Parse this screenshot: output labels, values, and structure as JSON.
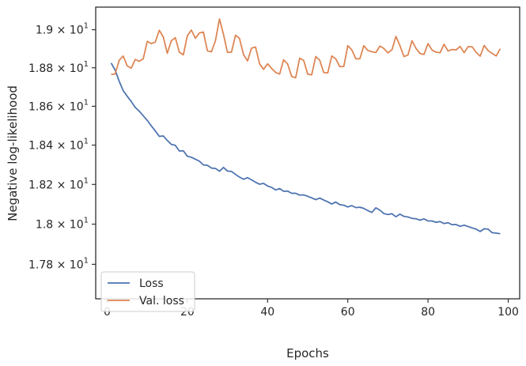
{
  "chart_data": {
    "type": "line",
    "xlabel": "Epochs",
    "ylabel": "Negative log-likelihood",
    "xlim": [
      -2.85,
      102.85
    ],
    "ylim": [
      17.63,
      19.12
    ],
    "y_scale": "log",
    "grid": false,
    "legend_position": "lower-left",
    "x_ticks": [
      0,
      20,
      40,
      60,
      80,
      100
    ],
    "x_tick_labels": [
      "0",
      "20",
      "40",
      "60",
      "80",
      "100"
    ],
    "y_ticks": [
      17.8,
      18.0,
      18.2,
      18.4,
      18.6,
      18.8,
      19.0
    ],
    "y_tick_labels": [
      {
        "base": "1.78 × 10",
        "exp": "1"
      },
      {
        "base": "1.8 × 10",
        "exp": "1"
      },
      {
        "base": "1.82 × 10",
        "exp": "1"
      },
      {
        "base": "1.84 × 10",
        "exp": "1"
      },
      {
        "base": "1.86 × 10",
        "exp": "1"
      },
      {
        "base": "1.88 × 10",
        "exp": "1"
      },
      {
        "base": "1.9 × 10",
        "exp": "1"
      }
    ],
    "x": [
      1,
      2,
      3,
      4,
      5,
      6,
      7,
      8,
      9,
      10,
      11,
      12,
      13,
      14,
      15,
      16,
      17,
      18,
      19,
      20,
      21,
      22,
      23,
      24,
      25,
      26,
      27,
      28,
      29,
      30,
      31,
      32,
      33,
      34,
      35,
      36,
      37,
      38,
      39,
      40,
      41,
      42,
      43,
      44,
      45,
      46,
      47,
      48,
      49,
      50,
      51,
      52,
      53,
      54,
      55,
      56,
      57,
      58,
      59,
      60,
      61,
      62,
      63,
      64,
      65,
      66,
      67,
      68,
      69,
      70,
      71,
      72,
      73,
      74,
      75,
      76,
      77,
      78,
      79,
      80,
      81,
      82,
      83,
      84,
      85,
      86,
      87,
      88,
      89,
      90,
      91,
      92,
      93,
      94,
      95,
      96,
      97,
      98
    ],
    "series": [
      {
        "name": "Loss",
        "color": "#4c72b0",
        "values": [
          18.825,
          18.788,
          18.73,
          18.681,
          18.652,
          18.625,
          18.594,
          18.575,
          18.551,
          18.527,
          18.499,
          18.473,
          18.445,
          18.447,
          18.424,
          18.404,
          18.399,
          18.37,
          18.371,
          18.343,
          18.338,
          18.328,
          18.318,
          18.299,
          18.297,
          18.283,
          18.281,
          18.267,
          18.286,
          18.268,
          18.266,
          18.251,
          18.237,
          18.226,
          18.234,
          18.223,
          18.211,
          18.201,
          18.205,
          18.192,
          18.185,
          18.172,
          18.179,
          18.165,
          18.166,
          18.155,
          18.155,
          18.146,
          18.147,
          18.14,
          18.132,
          18.123,
          18.131,
          18.121,
          18.112,
          18.101,
          18.111,
          18.098,
          18.095,
          18.086,
          18.093,
          18.083,
          18.085,
          18.079,
          18.068,
          18.059,
          18.082,
          18.07,
          18.053,
          18.048,
          18.052,
          18.037,
          18.05,
          18.039,
          18.036,
          18.029,
          18.027,
          18.02,
          18.026,
          18.016,
          18.016,
          18.009,
          18.013,
          18.003,
          18.007,
          17.997,
          17.998,
          17.989,
          17.995,
          17.988,
          17.981,
          17.975,
          17.963,
          17.977,
          17.975,
          17.957,
          17.955,
          17.952
        ]
      },
      {
        "name": "Val. loss",
        "color": "#dd8452",
        "values": [
          18.765,
          18.768,
          18.839,
          18.862,
          18.81,
          18.798,
          18.844,
          18.834,
          18.847,
          18.939,
          18.927,
          18.935,
          18.997,
          18.962,
          18.876,
          18.942,
          18.958,
          18.882,
          18.868,
          18.969,
          18.998,
          18.955,
          18.983,
          18.988,
          18.889,
          18.884,
          18.942,
          19.057,
          18.976,
          18.881,
          18.882,
          18.971,
          18.954,
          18.869,
          18.836,
          18.903,
          18.909,
          18.821,
          18.792,
          18.821,
          18.797,
          18.776,
          18.767,
          18.842,
          18.82,
          18.755,
          18.748,
          18.85,
          18.839,
          18.767,
          18.763,
          18.859,
          18.84,
          18.775,
          18.773,
          18.862,
          18.847,
          18.806,
          18.807,
          18.916,
          18.894,
          18.847,
          18.847,
          18.916,
          18.891,
          18.884,
          18.88,
          18.914,
          18.901,
          18.878,
          18.894,
          18.965,
          18.916,
          18.859,
          18.867,
          18.942,
          18.902,
          18.875,
          18.87,
          18.927,
          18.893,
          18.882,
          18.879,
          18.923,
          18.888,
          18.896,
          18.894,
          18.912,
          18.879,
          18.911,
          18.91,
          18.881,
          18.861,
          18.917,
          18.89,
          18.875,
          18.862,
          18.9
        ]
      }
    ]
  }
}
